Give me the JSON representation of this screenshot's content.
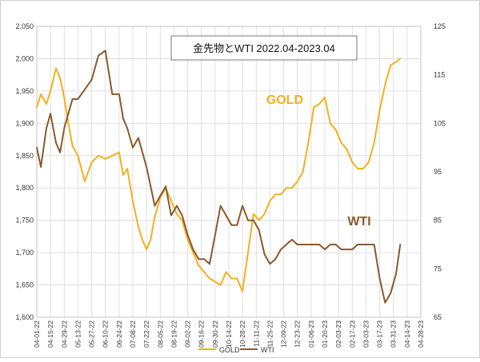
{
  "chart_data": {
    "type": "line",
    "title": "金先物とWTI  2022.04-2023.04",
    "annotations": {
      "gold": "GOLD",
      "wti": "WTI"
    },
    "colors": {
      "gold": "#F2B01E",
      "wti": "#8B5A2B",
      "grid": "#d8d8d8",
      "title_border": "#555555"
    },
    "grid": true,
    "legend_position": "bottom",
    "left_axis": {
      "ylim": [
        1600,
        2050
      ],
      "ticks": [
        "1,600",
        "1,650",
        "1,700",
        "1,750",
        "1,800",
        "1,850",
        "1,900",
        "1,950",
        "2,000",
        "2,050"
      ]
    },
    "right_axis": {
      "ylim": [
        65,
        125
      ],
      "ticks": [
        "65",
        "75",
        "85",
        "95",
        "105",
        "115",
        "125"
      ]
    },
    "x_ticks": [
      "04-01-22",
      "04-15-22",
      "04-29-22",
      "05-13-22",
      "05-27-22",
      "06-10-22",
      "06-24-22",
      "07-08-22",
      "07-22-22",
      "08-05-22",
      "08-19-22",
      "09-02-22",
      "09-16-22",
      "09-30-22",
      "10-14-22",
      "10-28-22",
      "11-11-22",
      "11-25-22",
      "12-09-22",
      "12-23-22",
      "01-06-23",
      "01-20-23",
      "02-03-23",
      "02-17-23",
      "03-03-23",
      "03-17-23",
      "03-31-23",
      "04-14-23",
      "04-28-23"
    ],
    "series": [
      {
        "name": "GOLD",
        "axis": "left",
        "x": [
          0,
          0.3,
          0.7,
          1,
          1.4,
          1.7,
          2,
          2.3,
          2.6,
          3,
          3.5,
          4,
          4.5,
          5,
          5.5,
          6,
          6.3,
          6.6,
          7,
          7.4,
          7.7,
          8,
          8.3,
          8.6,
          9,
          9.4,
          9.8,
          10.2,
          10.6,
          11,
          11.4,
          11.8,
          12.2,
          12.6,
          13,
          13.4,
          13.8,
          14.2,
          14.6,
          15,
          15.4,
          15.8,
          16.2,
          16.6,
          17,
          17.4,
          17.8,
          18.2,
          18.6,
          19,
          19.4,
          19.8,
          20.2,
          20.6,
          21,
          21.4,
          21.8,
          22.2,
          22.6,
          23,
          23.4,
          23.8,
          24.2,
          24.6,
          25,
          25.4,
          25.8,
          26.2,
          26.5
        ],
        "values": [
          1925,
          1945,
          1930,
          1950,
          1985,
          1970,
          1940,
          1900,
          1865,
          1850,
          1810,
          1840,
          1850,
          1845,
          1850,
          1855,
          1820,
          1830,
          1780,
          1740,
          1720,
          1705,
          1720,
          1755,
          1785,
          1800,
          1780,
          1760,
          1750,
          1720,
          1700,
          1680,
          1670,
          1660,
          1655,
          1650,
          1670,
          1660,
          1660,
          1640,
          1700,
          1760,
          1750,
          1760,
          1780,
          1790,
          1790,
          1800,
          1800,
          1810,
          1825,
          1870,
          1925,
          1930,
          1940,
          1900,
          1890,
          1870,
          1860,
          1840,
          1830,
          1830,
          1840,
          1870,
          1920,
          1960,
          1990,
          1995,
          2000
        ]
      },
      {
        "name": "WTI",
        "axis": "right",
        "x": [
          0,
          0.3,
          0.7,
          1,
          1.4,
          1.7,
          2,
          2.3,
          2.6,
          3,
          3.5,
          4,
          4.5,
          5,
          5.5,
          6,
          6.3,
          6.6,
          7,
          7.4,
          7.7,
          8,
          8.3,
          8.6,
          9,
          9.4,
          9.8,
          10.2,
          10.6,
          11,
          11.4,
          11.8,
          12.2,
          12.6,
          13,
          13.4,
          13.8,
          14.2,
          14.6,
          15,
          15.4,
          15.8,
          16.2,
          16.6,
          17,
          17.4,
          17.8,
          18.2,
          18.6,
          19,
          19.4,
          19.8,
          20.2,
          20.6,
          21,
          21.4,
          21.8,
          22.2,
          22.6,
          23,
          23.4,
          23.8,
          24.2,
          24.6,
          25,
          25.4,
          25.8,
          26.2,
          26.5
        ],
        "values": [
          100,
          96,
          104,
          107,
          101,
          99,
          104,
          107,
          110,
          110,
          112,
          114,
          119,
          120,
          111,
          111,
          106,
          104,
          100,
          102,
          99,
          96,
          92,
          88,
          90,
          92,
          86,
          88,
          86,
          82,
          79,
          77,
          77,
          76,
          82,
          88,
          86,
          84,
          84,
          88,
          85,
          85,
          83,
          78,
          76,
          77,
          79,
          80,
          81,
          80,
          80,
          80,
          80,
          80,
          79,
          80,
          80,
          79,
          79,
          79,
          80,
          80,
          80,
          80,
          73,
          68,
          70,
          74,
          80
        ]
      }
    ]
  }
}
